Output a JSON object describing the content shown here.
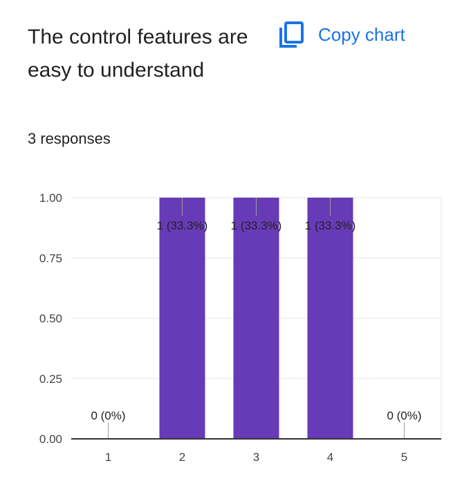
{
  "question": {
    "title": "The control features are easy to understand",
    "responses": "3 responses"
  },
  "actions": {
    "copy_chart_label": "Copy chart",
    "copy_icon": "copy-icon"
  },
  "colors": {
    "bar": "#673ab7",
    "accent": "#1a73e8",
    "text": "#202124",
    "axis_text": "#444444"
  },
  "chart_data": {
    "type": "bar",
    "categories": [
      "1",
      "2",
      "3",
      "4",
      "5"
    ],
    "values": [
      0,
      1,
      1,
      1,
      0
    ],
    "data_labels": [
      "0 (0%)",
      "1 (33.3%)",
      "1 (33.3%)",
      "1 (33.3%)",
      "0 (0%)"
    ],
    "ylim": [
      0,
      1
    ],
    "yticks": [
      "0.00",
      "0.25",
      "0.50",
      "0.75",
      "1.00"
    ],
    "grid": true
  }
}
